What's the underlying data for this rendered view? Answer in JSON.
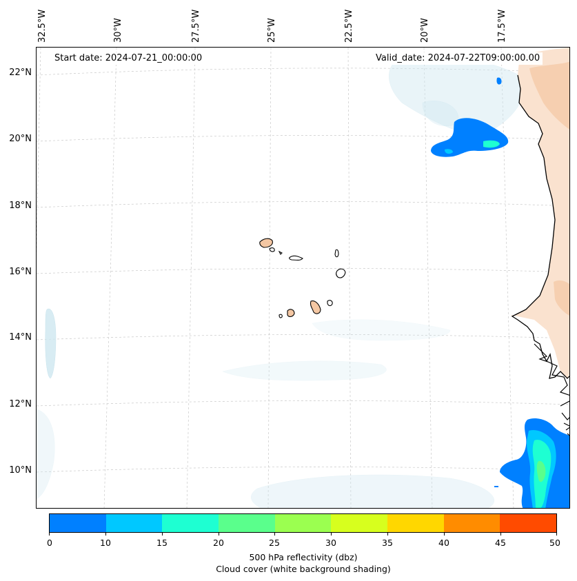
{
  "header": {
    "start_date": "Start date: 2024-07-21_00:00:00",
    "valid_date": "Valid_date: 2024-07-22T09:00:00.00"
  },
  "axes": {
    "lat_labels": [
      "22°N",
      "20°N",
      "18°N",
      "16°N",
      "14°N",
      "12°N",
      "10°N"
    ],
    "lon_labels": [
      "32.5°W",
      "30°W",
      "27.5°W",
      "25°W",
      "22.5°W",
      "20°W",
      "17.5°W"
    ],
    "grid": true
  },
  "colorbar": {
    "ticks": [
      "0",
      "10",
      "15",
      "20",
      "25",
      "30",
      "35",
      "40",
      "45",
      "50"
    ],
    "colors": [
      "#0080ff",
      "#00c8ff",
      "#1effd2",
      "#5aff8c",
      "#9bff50",
      "#d7ff1e",
      "#ffd700",
      "#ff8c00",
      "#ff4b00"
    ],
    "label": "500 hPa reflectivity (dbz)",
    "sublabel": "Cloud cover (white background shading)"
  },
  "map": {
    "land_fill": "#f5cba7",
    "cloud_fill": "#c6e4ef"
  }
}
